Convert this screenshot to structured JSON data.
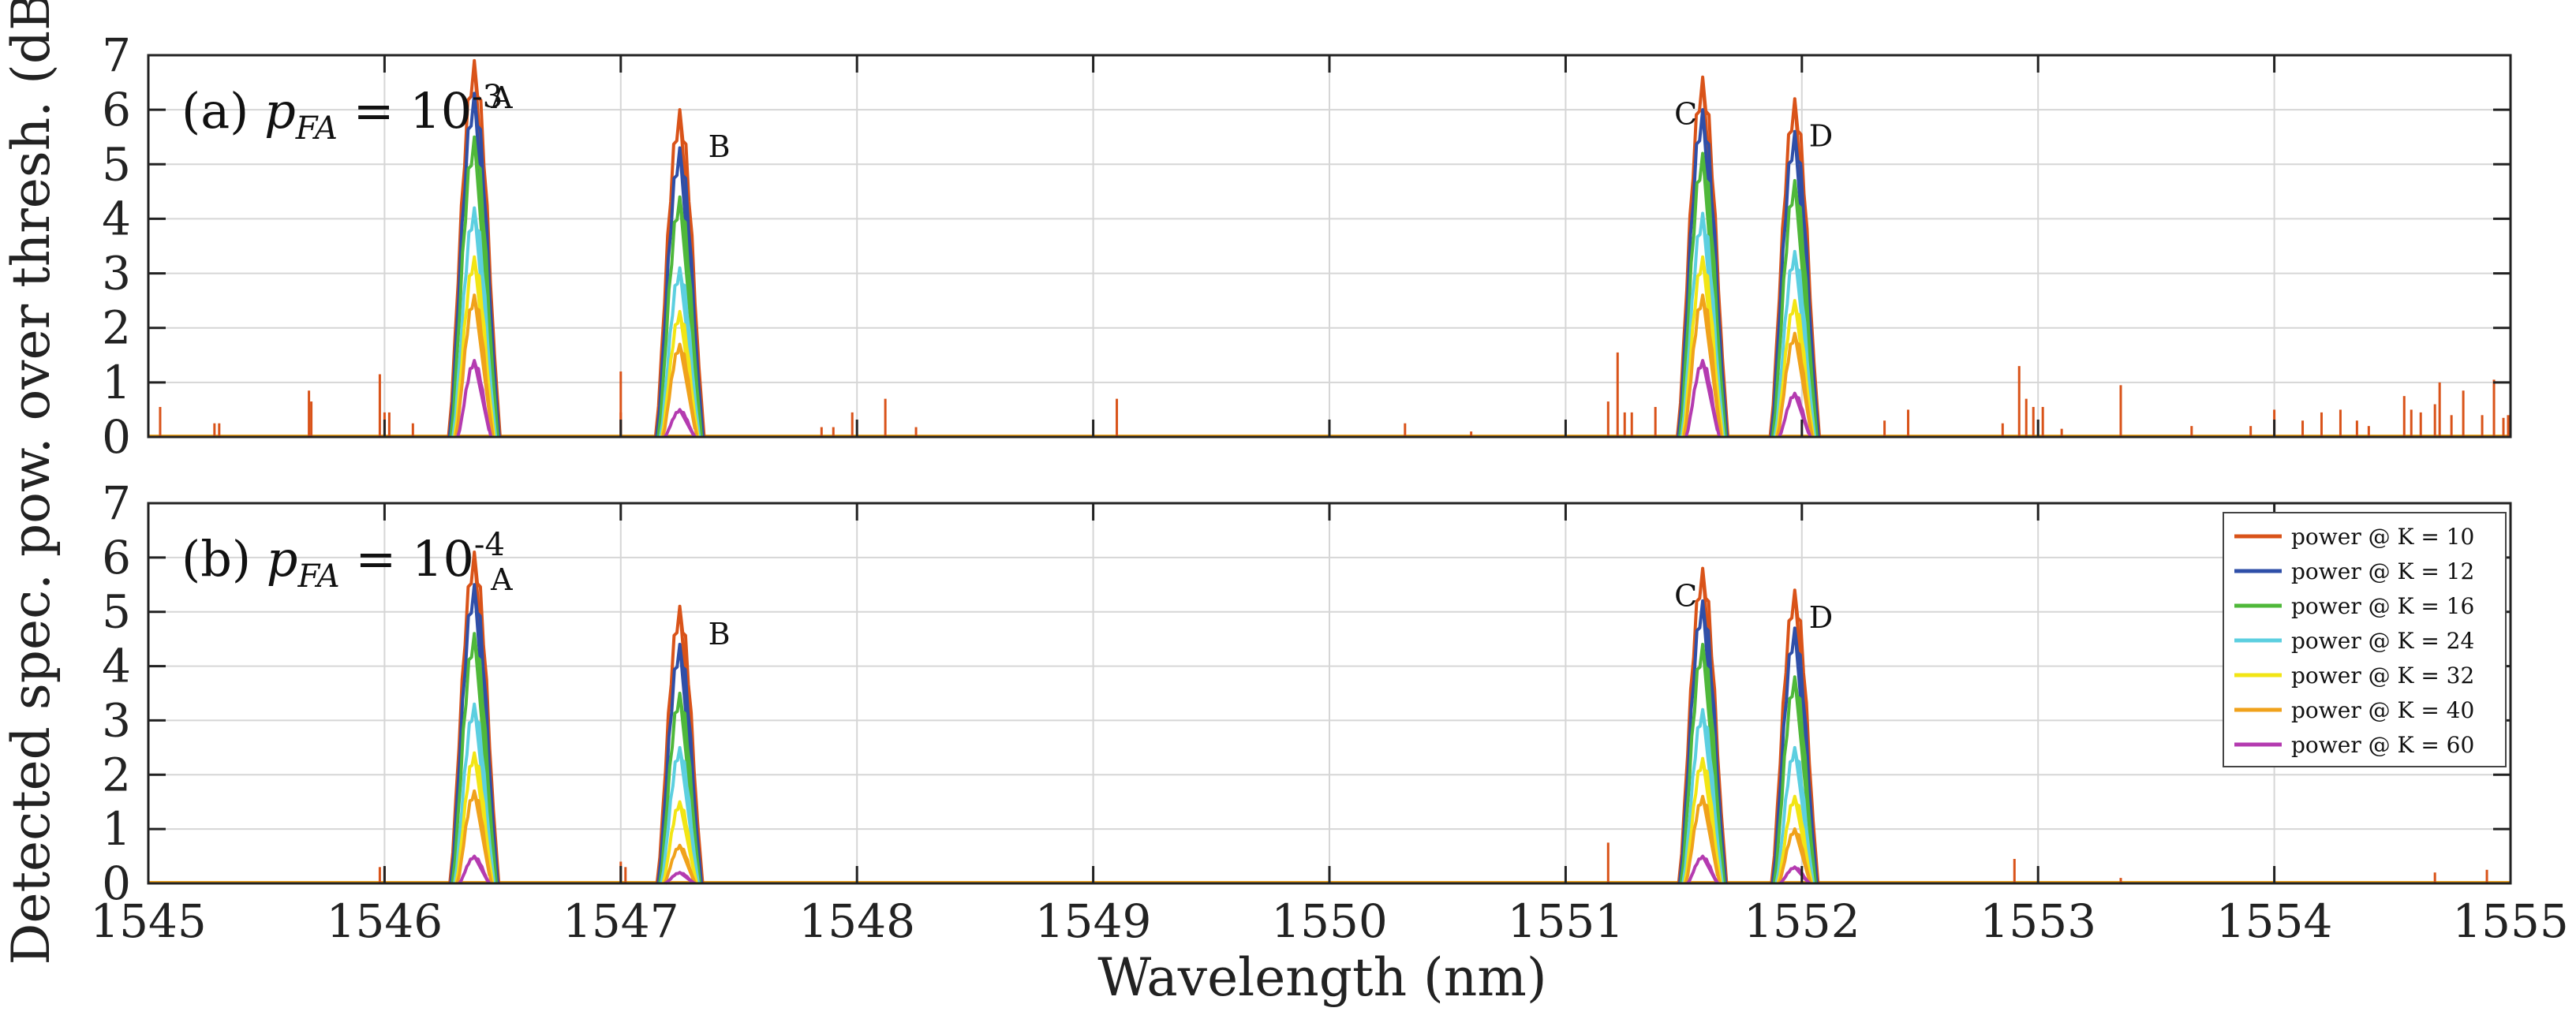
{
  "chart_data": {
    "type": "line",
    "xlabel": "Wavelength (nm)",
    "ylabel": "Detected spec. pow. over thresh. (dB)",
    "xlim": [
      1545,
      1555
    ],
    "ylim": [
      0,
      7
    ],
    "xticks": [
      1545,
      1546,
      1547,
      1548,
      1549,
      1550,
      1551,
      1552,
      1553,
      1554,
      1555
    ],
    "yticks": [
      0,
      1,
      2,
      3,
      4,
      5,
      6,
      7
    ],
    "grid": true,
    "legend_position": "top-right of panel (b)",
    "legend": [
      {
        "label": "power @ K = 10",
        "color": "#d95319"
      },
      {
        "label": "power @ K = 12",
        "color": "#2f4fa8"
      },
      {
        "label": "power @ K = 16",
        "color": "#4fb83a"
      },
      {
        "label": "power @ K = 24",
        "color": "#5ccfe0"
      },
      {
        "label": "power @ K = 32",
        "color": "#f2e515"
      },
      {
        "label": "power @ K = 40",
        "color": "#f0a21b"
      },
      {
        "label": "power @ K = 60",
        "color": "#b43bb0"
      }
    ],
    "peak_centers": {
      "A": 1546.38,
      "B": 1547.25,
      "C": 1551.58,
      "D": 1551.97
    },
    "peak_half_width_nm": 0.11,
    "panels": [
      {
        "label_prefix": "(a) ",
        "label_var": "p",
        "label_sub": "FA",
        "label_eq": " = 10",
        "label_sup": "-3",
        "peaks": [
          {
            "name": "A",
            "values": [
              6.9,
              6.3,
              5.5,
              4.2,
              3.3,
              2.6,
              1.4
            ]
          },
          {
            "name": "B",
            "values": [
              6.0,
              5.3,
              4.4,
              3.1,
              2.3,
              1.7,
              0.5
            ]
          },
          {
            "name": "C",
            "values": [
              6.6,
              6.0,
              5.2,
              4.1,
              3.3,
              2.6,
              1.4
            ]
          },
          {
            "name": "D",
            "values": [
              6.2,
              5.6,
              4.7,
              3.4,
              2.5,
              1.9,
              0.8
            ]
          }
        ],
        "spikes": [
          {
            "x": 1545.05,
            "y": 0.55
          },
          {
            "x": 1545.28,
            "y": 0.25
          },
          {
            "x": 1545.3,
            "y": 0.25
          },
          {
            "x": 1545.68,
            "y": 0.85
          },
          {
            "x": 1545.69,
            "y": 0.65
          },
          {
            "x": 1545.98,
            "y": 1.15
          },
          {
            "x": 1546.0,
            "y": 0.45
          },
          {
            "x": 1546.02,
            "y": 0.45
          },
          {
            "x": 1546.12,
            "y": 0.25
          },
          {
            "x": 1547.0,
            "y": 1.2
          },
          {
            "x": 1547.0,
            "y": 0.45
          },
          {
            "x": 1547.85,
            "y": 0.18
          },
          {
            "x": 1547.9,
            "y": 0.18
          },
          {
            "x": 1547.98,
            "y": 0.45
          },
          {
            "x": 1548.12,
            "y": 0.7
          },
          {
            "x": 1548.25,
            "y": 0.18
          },
          {
            "x": 1549.1,
            "y": 0.7
          },
          {
            "x": 1550.32,
            "y": 0.25
          },
          {
            "x": 1550.6,
            "y": 0.1
          },
          {
            "x": 1551.18,
            "y": 0.65
          },
          {
            "x": 1551.22,
            "y": 1.55
          },
          {
            "x": 1551.25,
            "y": 0.45
          },
          {
            "x": 1551.28,
            "y": 0.45
          },
          {
            "x": 1551.38,
            "y": 0.55
          },
          {
            "x": 1552.35,
            "y": 0.3
          },
          {
            "x": 1552.45,
            "y": 0.5
          },
          {
            "x": 1552.85,
            "y": 0.25
          },
          {
            "x": 1552.92,
            "y": 1.3
          },
          {
            "x": 1552.95,
            "y": 0.7
          },
          {
            "x": 1552.98,
            "y": 0.55
          },
          {
            "x": 1553.02,
            "y": 0.55
          },
          {
            "x": 1553.1,
            "y": 0.15
          },
          {
            "x": 1553.35,
            "y": 0.95
          },
          {
            "x": 1553.65,
            "y": 0.2
          },
          {
            "x": 1553.9,
            "y": 0.2
          },
          {
            "x": 1554.0,
            "y": 0.5
          },
          {
            "x": 1554.12,
            "y": 0.3
          },
          {
            "x": 1554.2,
            "y": 0.45
          },
          {
            "x": 1554.28,
            "y": 0.5
          },
          {
            "x": 1554.35,
            "y": 0.3
          },
          {
            "x": 1554.4,
            "y": 0.2
          },
          {
            "x": 1554.55,
            "y": 0.75
          },
          {
            "x": 1554.58,
            "y": 0.5
          },
          {
            "x": 1554.62,
            "y": 0.45
          },
          {
            "x": 1554.68,
            "y": 0.6
          },
          {
            "x": 1554.7,
            "y": 1.0
          },
          {
            "x": 1554.75,
            "y": 0.4
          },
          {
            "x": 1554.8,
            "y": 0.85
          },
          {
            "x": 1554.88,
            "y": 0.4
          },
          {
            "x": 1554.93,
            "y": 1.05
          },
          {
            "x": 1554.97,
            "y": 0.35
          },
          {
            "x": 1554.99,
            "y": 0.4
          }
        ]
      },
      {
        "label_prefix": "(b) ",
        "label_var": "p",
        "label_sub": "FA",
        "label_eq": " = 10",
        "label_sup": "-4",
        "peaks": [
          {
            "name": "A",
            "values": [
              6.1,
              5.5,
              4.6,
              3.3,
              2.4,
              1.7,
              0.5
            ]
          },
          {
            "name": "B",
            "values": [
              5.1,
              4.4,
              3.5,
              2.5,
              1.5,
              0.7,
              0.2
            ]
          },
          {
            "name": "C",
            "values": [
              5.8,
              5.2,
              4.4,
              3.2,
              2.3,
              1.6,
              0.5
            ]
          },
          {
            "name": "D",
            "values": [
              5.4,
              4.7,
              3.8,
              2.5,
              1.6,
              1.0,
              0.3
            ]
          }
        ],
        "spikes": [
          {
            "x": 1545.98,
            "y": 0.3
          },
          {
            "x": 1546.0,
            "y": 0.3
          },
          {
            "x": 1547.0,
            "y": 0.4
          },
          {
            "x": 1547.02,
            "y": 0.3
          },
          {
            "x": 1551.18,
            "y": 0.75
          },
          {
            "x": 1552.9,
            "y": 0.45
          },
          {
            "x": 1553.35,
            "y": 0.1
          },
          {
            "x": 1554.68,
            "y": 0.2
          },
          {
            "x": 1554.9,
            "y": 0.25
          }
        ]
      }
    ]
  }
}
